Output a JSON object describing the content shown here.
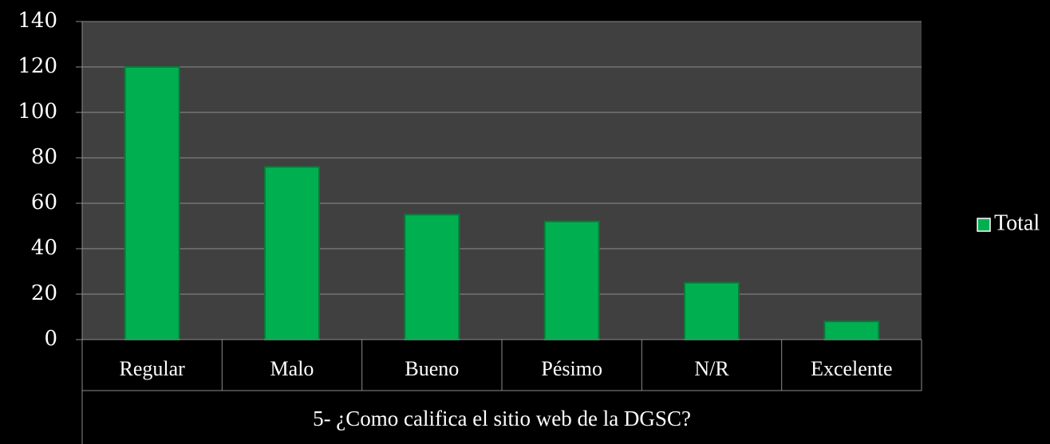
{
  "chart_data": {
    "type": "bar",
    "x_label": "5- ¿Como califica el sitio web de la DGSC?",
    "categories": [
      "Regular",
      "Malo",
      "Bueno",
      "Pésimo",
      "N/R",
      "Excelente"
    ],
    "series": [
      {
        "name": "Total",
        "color": "#00b050",
        "values": [
          120,
          76,
          55,
          52,
          25,
          8
        ]
      }
    ],
    "ylim": [
      0,
      140
    ],
    "yticks": [
      0,
      20,
      40,
      60,
      80,
      100,
      120,
      140
    ],
    "grid": true,
    "legend": "right"
  }
}
